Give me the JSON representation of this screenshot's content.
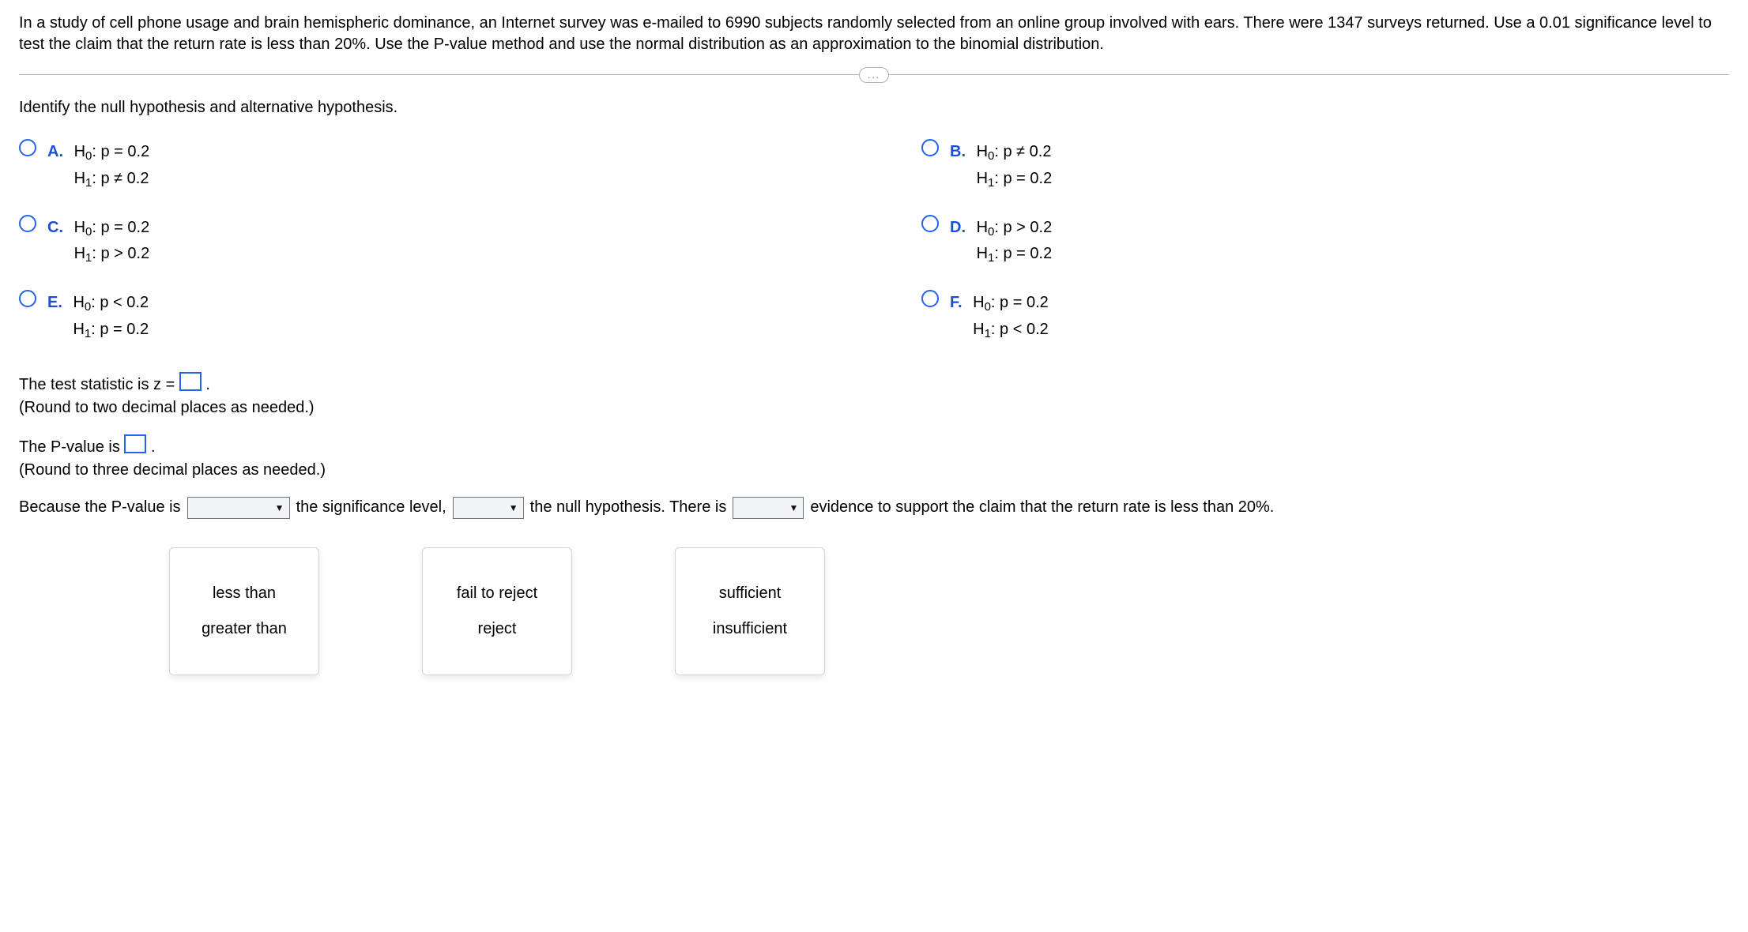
{
  "question_stem": "In a study of cell phone usage and brain hemispheric dominance, an Internet survey was e-mailed to 6990 subjects randomly selected from an online group involved with ears. There were 1347 surveys returned. Use a 0.01 significance level to test the claim that the return rate is less than 20%. Use the P-value method and use the normal distribution as an approximation to the binomial distribution.",
  "more_indicator": "...",
  "subhead": "Identify the null hypothesis and alternative hypothesis.",
  "options": {
    "A": {
      "letter": "A.",
      "h0": "H",
      "h0sub": "0",
      "h0rest": ": p = 0.2",
      "h1": "H",
      "h1sub": "1",
      "h1rest": ": p ≠ 0.2"
    },
    "B": {
      "letter": "B.",
      "h0": "H",
      "h0sub": "0",
      "h0rest": ": p ≠ 0.2",
      "h1": "H",
      "h1sub": "1",
      "h1rest": ": p = 0.2"
    },
    "C": {
      "letter": "C.",
      "h0": "H",
      "h0sub": "0",
      "h0rest": ": p = 0.2",
      "h1": "H",
      "h1sub": "1",
      "h1rest": ": p > 0.2"
    },
    "D": {
      "letter": "D.",
      "h0": "H",
      "h0sub": "0",
      "h0rest": ": p > 0.2",
      "h1": "H",
      "h1sub": "1",
      "h1rest": ": p = 0.2"
    },
    "E": {
      "letter": "E.",
      "h0": "H",
      "h0sub": "0",
      "h0rest": ": p < 0.2",
      "h1": "H",
      "h1sub": "1",
      "h1rest": ": p = 0.2"
    },
    "F": {
      "letter": "F.",
      "h0": "H",
      "h0sub": "0",
      "h0rest": ": p = 0.2",
      "h1": "H",
      "h1sub": "1",
      "h1rest": ": p < 0.2"
    }
  },
  "test_stat_prefix": "The test statistic is z = ",
  "test_stat_suffix": ".",
  "test_stat_hint": "(Round to two decimal places as needed.)",
  "pvalue_prefix": "The P-value is ",
  "pvalue_suffix": ".",
  "pvalue_hint": "(Round to three decimal places as needed.)",
  "conclusion": {
    "s1": "Because the P-value is",
    "s2": "the significance level,",
    "s3": "the null hypothesis. There is",
    "s4": "evidence to support the claim that the return rate is less than 20%."
  },
  "dropdown_menus": {
    "compare": {
      "opt1": "less than",
      "opt2": "greater than"
    },
    "decision": {
      "opt1": "fail to reject",
      "opt2": "reject"
    },
    "evidence": {
      "opt1": "sufficient",
      "opt2": "insufficient"
    }
  }
}
